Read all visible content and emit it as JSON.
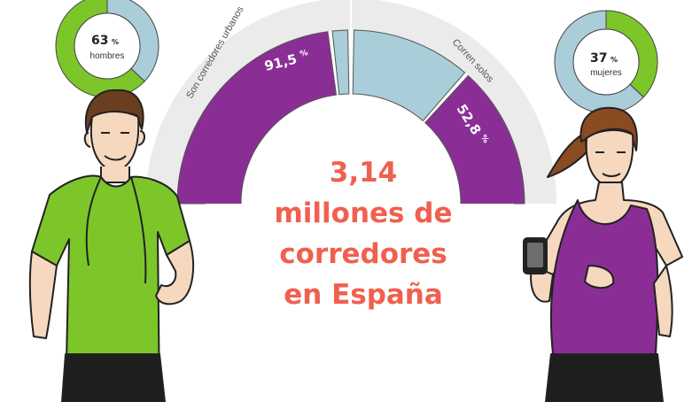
{
  "colors": {
    "purple": "#8a2e96",
    "light_blue": "#a9cdd9",
    "green": "#7cc62a",
    "gray_band": "#ebebeb",
    "headline": "#f0604f"
  },
  "chart_data": [
    {
      "type": "pie",
      "categories": [
        "hombres",
        "mujeres"
      ],
      "values": [
        63,
        37
      ],
      "center_value": "63",
      "center_unit": "%",
      "center_label": "hombres"
    },
    {
      "type": "pie",
      "categories": [
        "mujeres",
        "hombres"
      ],
      "values": [
        37,
        63
      ],
      "center_value": "37",
      "center_unit": "%",
      "center_label": "mujeres"
    },
    {
      "type": "bar",
      "label": "Son corredores urbanos",
      "value_text": "91,5",
      "unit": "%",
      "value": 91.5
    },
    {
      "type": "bar",
      "label": "Corren solos",
      "value_text": "52,8",
      "unit": "%",
      "value": 52.8
    }
  ],
  "headline": {
    "line1": "3,14",
    "line2": "millones de",
    "line3": "corredores",
    "line4": "en España"
  },
  "icons": [
    "male-runner-illustration",
    "female-runner-illustration",
    "armband-phone-icon"
  ]
}
